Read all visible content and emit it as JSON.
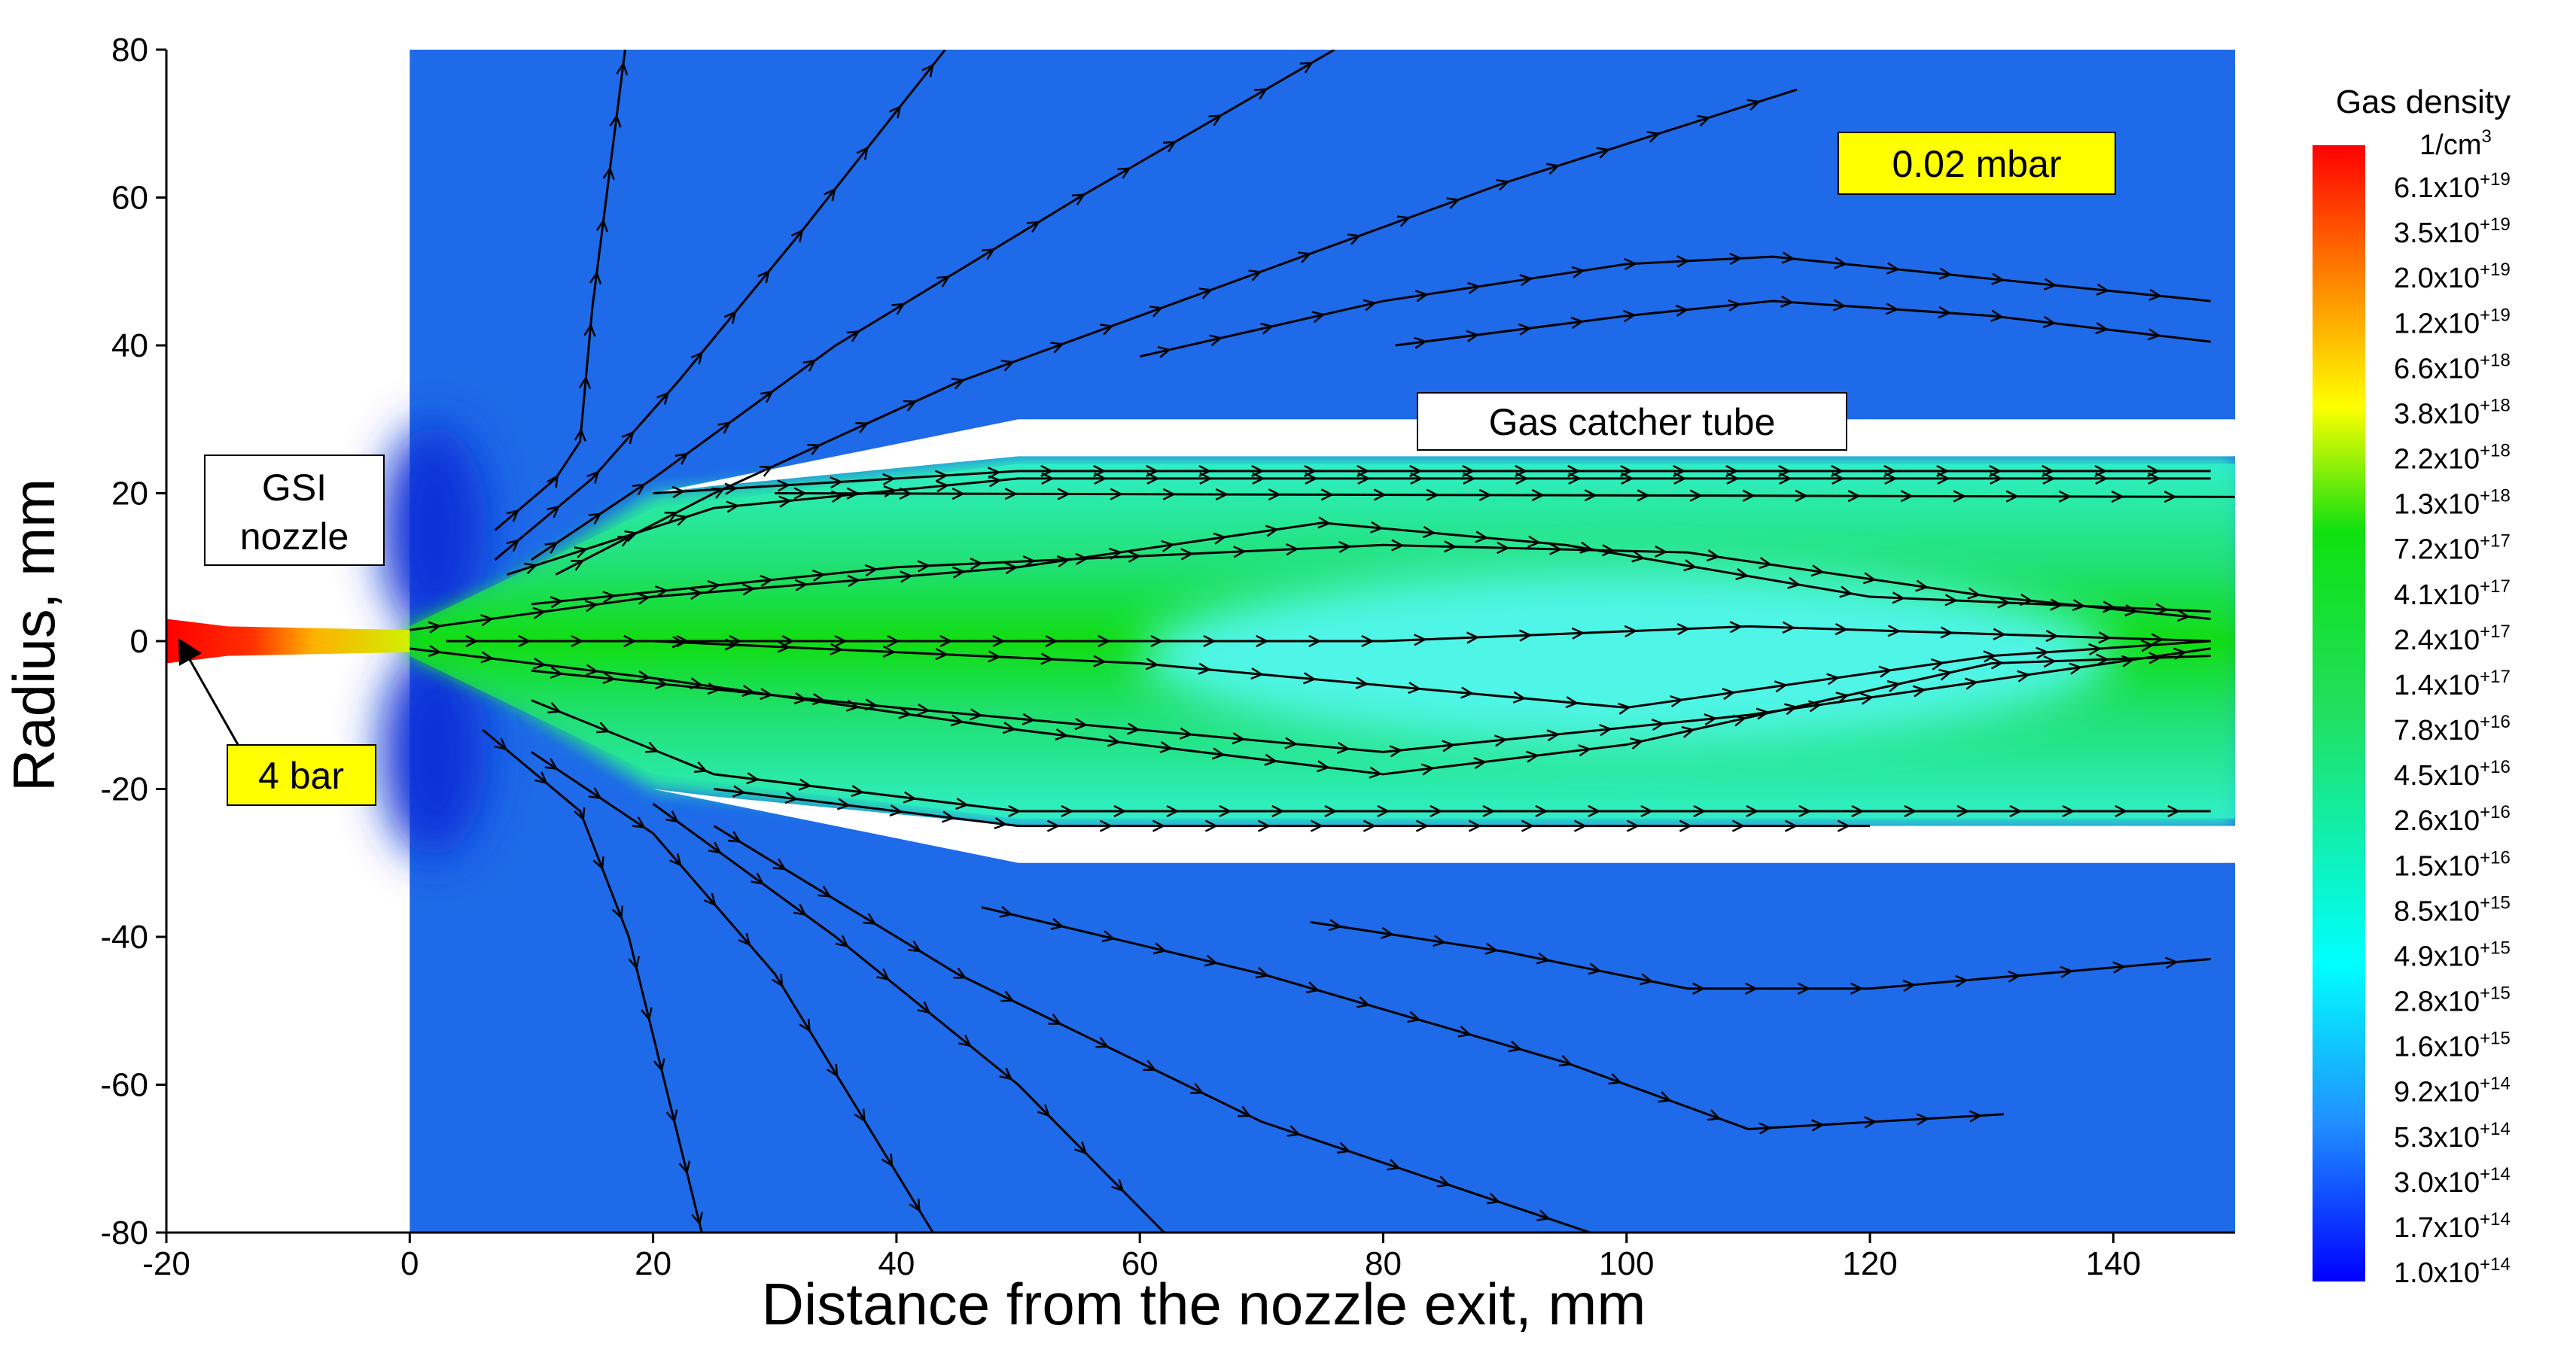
{
  "chart_data": {
    "type": "contour",
    "x_label": "Distance from the nozzle exit,  mm",
    "y_label": "Radius,  mm",
    "xlim": [
      -20,
      150
    ],
    "xticks": [
      -20,
      0,
      20,
      40,
      60,
      80,
      100,
      120,
      140
    ],
    "ylim": [
      -80,
      80
    ],
    "yticks": [
      -80,
      -60,
      -40,
      -20,
      0,
      20,
      40,
      60,
      80
    ],
    "colorbar": {
      "title": "Gas density",
      "unit": "1/cm",
      "unit_exponent": "3",
      "levels": [
        {
          "mantissa": "6.1x10",
          "exponent": "+19"
        },
        {
          "mantissa": "3.5x10",
          "exponent": "+19"
        },
        {
          "mantissa": "2.0x10",
          "exponent": "+19"
        },
        {
          "mantissa": "1.2x10",
          "exponent": "+19"
        },
        {
          "mantissa": "6.6x10",
          "exponent": "+18"
        },
        {
          "mantissa": "3.8x10",
          "exponent": "+18"
        },
        {
          "mantissa": "2.2x10",
          "exponent": "+18"
        },
        {
          "mantissa": "1.3x10",
          "exponent": "+18"
        },
        {
          "mantissa": "7.2x10",
          "exponent": "+17"
        },
        {
          "mantissa": "4.1x10",
          "exponent": "+17"
        },
        {
          "mantissa": "2.4x10",
          "exponent": "+17"
        },
        {
          "mantissa": "1.4x10",
          "exponent": "+17"
        },
        {
          "mantissa": "7.8x10",
          "exponent": "+16"
        },
        {
          "mantissa": "4.5x10",
          "exponent": "+16"
        },
        {
          "mantissa": "2.6x10",
          "exponent": "+16"
        },
        {
          "mantissa": "1.5x10",
          "exponent": "+16"
        },
        {
          "mantissa": "8.5x10",
          "exponent": "+15"
        },
        {
          "mantissa": "4.9x10",
          "exponent": "+15"
        },
        {
          "mantissa": "2.8x10",
          "exponent": "+15"
        },
        {
          "mantissa": "1.6x10",
          "exponent": "+15"
        },
        {
          "mantissa": "9.2x10",
          "exponent": "+14"
        },
        {
          "mantissa": "5.3x10",
          "exponent": "+14"
        },
        {
          "mantissa": "3.0x10",
          "exponent": "+14"
        },
        {
          "mantissa": "1.7x10",
          "exponent": "+14"
        },
        {
          "mantissa": "1.0x10",
          "exponent": "+14"
        }
      ]
    },
    "annotations": {
      "pressure_outside": "0.02 mbar",
      "tube": "Gas catcher tube",
      "nozzle_line1": "GSI",
      "nozzle_line2": "nozzle",
      "pressure_nozzle": "4 bar"
    },
    "streamlines": [
      {
        "x": [
          7,
          12,
          14,
          15,
          17.7
        ],
        "y": [
          15,
          22,
          27,
          45,
          80
        ]
      },
      {
        "x": [
          7,
          15,
          22,
          32,
          44
        ],
        "y": [
          11,
          22,
          35,
          55,
          80
        ]
      },
      {
        "x": [
          10,
          20,
          35,
          55,
          76
        ],
        "y": [
          11,
          22,
          40,
          60,
          80
        ]
      },
      {
        "x": [
          12,
          25,
          45,
          70,
          90,
          114
        ],
        "y": [
          9,
          20,
          35,
          50,
          62,
          74.6
        ]
      },
      {
        "x": [
          60,
          80,
          100,
          112,
          130,
          148
        ],
        "y": [
          38.5,
          46,
          51,
          52,
          49,
          46
        ]
      },
      {
        "x": [
          81,
          100,
          112,
          130,
          148
        ],
        "y": [
          40,
          44,
          46,
          44,
          40.5
        ]
      },
      {
        "x": [
          6,
          14,
          18,
          24
        ],
        "y": [
          -12,
          -23,
          -40,
          -80
        ]
      },
      {
        "x": [
          10,
          20,
          30,
          43
        ],
        "y": [
          -15,
          -26,
          -45,
          -80
        ]
      },
      {
        "x": [
          20,
          35,
          50,
          62
        ],
        "y": [
          -22,
          -40,
          -60,
          -80
        ]
      },
      {
        "x": [
          25,
          45,
          70,
          97
        ],
        "y": [
          -25,
          -45,
          -65,
          -80
        ]
      },
      {
        "x": [
          47,
          70,
          95,
          110,
          131
        ],
        "y": [
          -36,
          -45,
          -57,
          -66,
          -64
        ]
      },
      {
        "x": [
          74,
          90,
          105,
          120,
          148
        ],
        "y": [
          -38,
          -42,
          -47,
          -47,
          -43
        ]
      },
      {
        "x": [
          0,
          20,
          50,
          75,
          95,
          120,
          148
        ],
        "y": [
          1.5,
          6,
          10,
          16,
          13,
          6,
          4
        ]
      },
      {
        "x": [
          0,
          20,
          50,
          80,
          100,
          130,
          148
        ],
        "y": [
          -1,
          -5,
          -12,
          -18,
          -14,
          -3,
          -2
        ]
      },
      {
        "x": [
          3,
          40,
          80,
          110,
          148
        ],
        "y": [
          0,
          0,
          0,
          2,
          0
        ]
      },
      {
        "x": [
          20,
          60,
          100,
          130,
          148
        ],
        "y": [
          0,
          -3,
          -9,
          -2,
          0
        ]
      },
      {
        "x": [
          10,
          40,
          80,
          105,
          130,
          148
        ],
        "y": [
          5,
          10,
          13,
          12,
          6,
          3
        ]
      },
      {
        "x": [
          10,
          40,
          80,
          110,
          148
        ],
        "y": [
          -4,
          -9,
          -15,
          -10,
          -1
        ]
      },
      {
        "x": [
          8,
          25,
          50,
          148
        ],
        "y": [
          9,
          18,
          22,
          22
        ]
      },
      {
        "x": [
          10,
          25,
          50,
          148
        ],
        "y": [
          -8,
          -18,
          -23,
          -23
        ]
      },
      {
        "x": [
          20,
          50,
          148
        ],
        "y": [
          20,
          23,
          23
        ]
      },
      {
        "x": [
          25,
          50,
          120
        ],
        "y": [
          -20,
          -25,
          -25
        ]
      },
      {
        "x": [
          30,
          150
        ],
        "y": [
          20,
          19.5
        ]
      }
    ]
  }
}
